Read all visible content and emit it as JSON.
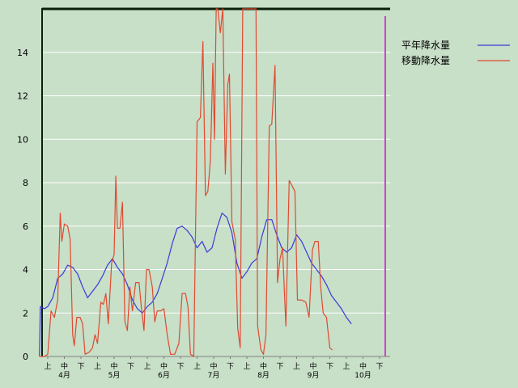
{
  "chart_data": {
    "type": "line",
    "title": "",
    "xlabel": "",
    "ylabel": "",
    "ylim": [
      0,
      16
    ],
    "yticks": [
      0,
      2,
      4,
      6,
      8,
      10,
      12,
      14
    ],
    "grid": true,
    "legend_position": "top-right",
    "dekad_labels": [
      "上",
      "中",
      "下"
    ],
    "months": [
      "4月",
      "5月",
      "6月",
      "7月",
      "8月",
      "9月",
      "10月"
    ],
    "x_note": "x values are dekad index: 0 = 4月上旬 ... 20 = 10月下旬",
    "series": [
      {
        "name": "平年降水量",
        "color": "#3a3ad8",
        "points": [
          [
            -0.5,
            0.0
          ],
          [
            -0.45,
            2.3
          ],
          [
            -0.2,
            2.2
          ],
          [
            0.0,
            2.3
          ],
          [
            0.3,
            2.7
          ],
          [
            0.6,
            3.6
          ],
          [
            0.9,
            3.8
          ],
          [
            1.2,
            4.2
          ],
          [
            1.5,
            4.1
          ],
          [
            1.8,
            3.8
          ],
          [
            2.1,
            3.2
          ],
          [
            2.4,
            2.7
          ],
          [
            2.7,
            3.0
          ],
          [
            3.0,
            3.3
          ],
          [
            3.3,
            3.7
          ],
          [
            3.6,
            4.2
          ],
          [
            3.9,
            4.5
          ],
          [
            4.2,
            4.1
          ],
          [
            4.5,
            3.8
          ],
          [
            4.8,
            3.3
          ],
          [
            5.1,
            2.6
          ],
          [
            5.4,
            2.2
          ],
          [
            5.7,
            2.0
          ],
          [
            6.0,
            2.3
          ],
          [
            6.3,
            2.5
          ],
          [
            6.6,
            2.9
          ],
          [
            6.9,
            3.6
          ],
          [
            7.2,
            4.3
          ],
          [
            7.5,
            5.2
          ],
          [
            7.8,
            5.9
          ],
          [
            8.1,
            6.0
          ],
          [
            8.4,
            5.8
          ],
          [
            8.7,
            5.5
          ],
          [
            9.0,
            5.0
          ],
          [
            9.3,
            5.3
          ],
          [
            9.6,
            4.8
          ],
          [
            9.9,
            5.0
          ],
          [
            10.2,
            5.9
          ],
          [
            10.5,
            6.6
          ],
          [
            10.8,
            6.4
          ],
          [
            11.1,
            5.7
          ],
          [
            11.4,
            4.3
          ],
          [
            11.7,
            3.6
          ],
          [
            12.0,
            3.9
          ],
          [
            12.3,
            4.3
          ],
          [
            12.6,
            4.5
          ],
          [
            12.9,
            5.5
          ],
          [
            13.2,
            6.3
          ],
          [
            13.5,
            6.3
          ],
          [
            13.8,
            5.6
          ],
          [
            14.1,
            5.0
          ],
          [
            14.4,
            4.8
          ],
          [
            14.7,
            5.0
          ],
          [
            15.0,
            5.6
          ],
          [
            15.3,
            5.3
          ],
          [
            15.6,
            4.8
          ],
          [
            15.9,
            4.3
          ],
          [
            16.2,
            4.0
          ],
          [
            16.5,
            3.7
          ],
          [
            16.8,
            3.3
          ],
          [
            17.1,
            2.8
          ],
          [
            17.4,
            2.5
          ],
          [
            17.7,
            2.2
          ],
          [
            18.0,
            1.8
          ],
          [
            18.3,
            1.5
          ]
        ]
      },
      {
        "name": "移動降水量",
        "color": "#e04a30",
        "points": [
          [
            -0.5,
            0.0
          ],
          [
            -0.2,
            0.0
          ],
          [
            0.0,
            0.1
          ],
          [
            0.2,
            2.1
          ],
          [
            0.4,
            1.8
          ],
          [
            0.6,
            2.6
          ],
          [
            0.75,
            6.6
          ],
          [
            0.85,
            5.3
          ],
          [
            1.0,
            6.1
          ],
          [
            1.2,
            6.0
          ],
          [
            1.35,
            5.4
          ],
          [
            1.5,
            1.0
          ],
          [
            1.6,
            0.5
          ],
          [
            1.75,
            1.8
          ],
          [
            1.95,
            1.8
          ],
          [
            2.1,
            1.5
          ],
          [
            2.25,
            0.1
          ],
          [
            2.5,
            0.2
          ],
          [
            2.7,
            0.4
          ],
          [
            2.85,
            1.0
          ],
          [
            3.0,
            0.6
          ],
          [
            3.2,
            2.5
          ],
          [
            3.35,
            2.4
          ],
          [
            3.5,
            2.9
          ],
          [
            3.65,
            1.5
          ],
          [
            3.85,
            4.3
          ],
          [
            4.0,
            4.7
          ],
          [
            4.1,
            8.3
          ],
          [
            4.2,
            5.9
          ],
          [
            4.35,
            5.9
          ],
          [
            4.5,
            7.1
          ],
          [
            4.65,
            1.6
          ],
          [
            4.8,
            1.2
          ],
          [
            4.95,
            3.2
          ],
          [
            5.1,
            2.1
          ],
          [
            5.3,
            3.4
          ],
          [
            5.5,
            3.4
          ],
          [
            5.65,
            2.2
          ],
          [
            5.8,
            1.2
          ],
          [
            5.95,
            4.0
          ],
          [
            6.1,
            4.0
          ],
          [
            6.3,
            3.2
          ],
          [
            6.45,
            1.6
          ],
          [
            6.6,
            2.1
          ],
          [
            6.8,
            2.1
          ],
          [
            7.0,
            2.2
          ],
          [
            7.2,
            1.0
          ],
          [
            7.4,
            0.1
          ],
          [
            7.65,
            0.1
          ],
          [
            7.9,
            0.6
          ],
          [
            8.1,
            2.9
          ],
          [
            8.3,
            2.9
          ],
          [
            8.45,
            2.3
          ],
          [
            8.6,
            0.1
          ],
          [
            8.8,
            0.0
          ],
          [
            9.0,
            10.8
          ],
          [
            9.2,
            11.0
          ],
          [
            9.35,
            14.5
          ],
          [
            9.5,
            7.4
          ],
          [
            9.65,
            7.6
          ],
          [
            9.8,
            9.0
          ],
          [
            9.95,
            13.5
          ],
          [
            10.05,
            10.0
          ],
          [
            10.15,
            16.5
          ],
          [
            10.25,
            16.5
          ],
          [
            10.4,
            14.9
          ],
          [
            10.55,
            16.5
          ],
          [
            10.7,
            8.4
          ],
          [
            10.85,
            12.5
          ],
          [
            10.95,
            13.0
          ],
          [
            11.1,
            6.2
          ],
          [
            11.3,
            5.4
          ],
          [
            11.45,
            1.3
          ],
          [
            11.6,
            0.4
          ],
          [
            11.75,
            16.5
          ],
          [
            11.95,
            16.5
          ],
          [
            12.2,
            16.5
          ],
          [
            12.4,
            16.5
          ],
          [
            12.55,
            16.5
          ],
          [
            12.65,
            1.4
          ],
          [
            12.85,
            0.3
          ],
          [
            13.0,
            0.1
          ],
          [
            13.15,
            1.0
          ],
          [
            13.35,
            10.6
          ],
          [
            13.5,
            10.7
          ],
          [
            13.7,
            13.4
          ],
          [
            13.85,
            3.4
          ],
          [
            14.0,
            4.5
          ],
          [
            14.15,
            5.0
          ],
          [
            14.35,
            1.4
          ],
          [
            14.55,
            8.1
          ],
          [
            14.7,
            7.9
          ],
          [
            14.9,
            7.6
          ],
          [
            15.05,
            2.6
          ],
          [
            15.3,
            2.6
          ],
          [
            15.55,
            2.5
          ],
          [
            15.75,
            1.8
          ],
          [
            15.95,
            4.9
          ],
          [
            16.1,
            5.3
          ],
          [
            16.3,
            5.3
          ],
          [
            16.45,
            3.2
          ],
          [
            16.6,
            2.0
          ],
          [
            16.8,
            1.8
          ],
          [
            17.0,
            0.4
          ],
          [
            17.15,
            0.3
          ]
        ]
      }
    ]
  }
}
